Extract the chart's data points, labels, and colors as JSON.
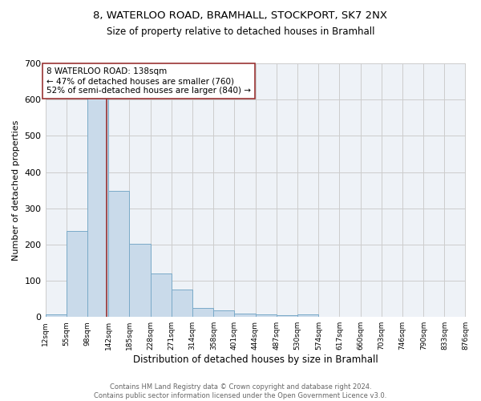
{
  "title1": "8, WATERLOO ROAD, BRAMHALL, STOCKPORT, SK7 2NX",
  "title2": "Size of property relative to detached houses in Bramhall",
  "xlabel": "Distribution of detached houses by size in Bramhall",
  "ylabel": "Number of detached properties",
  "bin_edges": [
    12,
    55,
    98,
    142,
    185,
    228,
    271,
    314,
    358,
    401,
    444,
    487,
    530,
    574,
    617,
    660,
    703,
    746,
    790,
    833,
    876
  ],
  "bin_counts": [
    8,
    238,
    620,
    348,
    203,
    120,
    75,
    25,
    18,
    10,
    6,
    4,
    8,
    0,
    0,
    0,
    0,
    0,
    0,
    0
  ],
  "bar_facecolor": "#c9daea",
  "bar_edgecolor": "#7aaac8",
  "vline_x": 138,
  "vline_color": "#993333",
  "annotation_text": "8 WATERLOO ROAD: 138sqm\n← 47% of detached houses are smaller (760)\n52% of semi-detached houses are larger (840) →",
  "annotation_box_color": "white",
  "annotation_box_edgecolor": "#993333",
  "annotation_fontsize": 7.5,
  "grid_color": "#cccccc",
  "background_color": "#eef2f7",
  "ylim": [
    0,
    700
  ],
  "yticks": [
    0,
    100,
    200,
    300,
    400,
    500,
    600,
    700
  ],
  "footer_text": "Contains HM Land Registry data © Crown copyright and database right 2024.\nContains public sector information licensed under the Open Government Licence v3.0.",
  "tick_labels": [
    "12sqm",
    "55sqm",
    "98sqm",
    "142sqm",
    "185sqm",
    "228sqm",
    "271sqm",
    "314sqm",
    "358sqm",
    "401sqm",
    "444sqm",
    "487sqm",
    "530sqm",
    "574sqm",
    "617sqm",
    "660sqm",
    "703sqm",
    "746sqm",
    "790sqm",
    "833sqm",
    "876sqm"
  ],
  "title1_fontsize": 9.5,
  "title2_fontsize": 8.5,
  "xlabel_fontsize": 8.5,
  "ylabel_fontsize": 8.0,
  "tick_fontsize": 6.5,
  "footer_fontsize": 6.0,
  "ytick_fontsize": 8.0
}
